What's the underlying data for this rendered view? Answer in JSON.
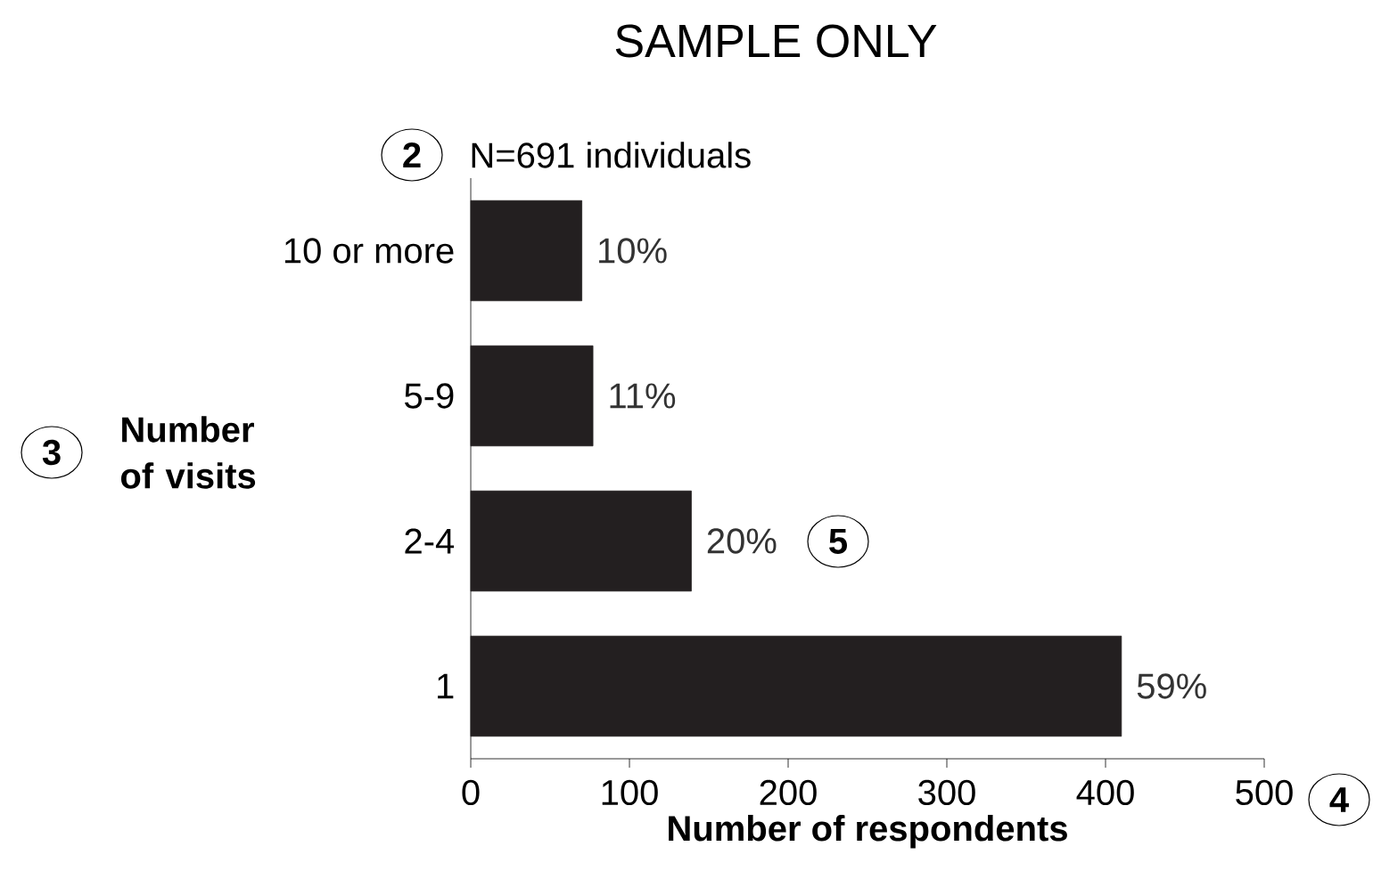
{
  "chart_data": {
    "type": "bar",
    "orientation": "horizontal",
    "title": "SAMPLE ONLY",
    "subtitle": "N=691 individuals",
    "xlabel": "Number of respondents",
    "ylabel": "Number of visits",
    "categories": [
      "10 or more",
      "5-9",
      "2-4",
      "1"
    ],
    "values": [
      70,
      77,
      139,
      410
    ],
    "color": "#231f20",
    "xlim": [
      0,
      500
    ],
    "xticks": [
      0,
      100,
      200,
      300,
      400,
      500
    ],
    "annotations": [
      "2",
      "3",
      "4",
      "5",
      {
        "text": "10%",
        "x": 70,
        "y": "10 or more"
      },
      {
        "text": "11%",
        "x": 77,
        "y": "5-9"
      },
      {
        "text": "20%",
        "x": 139,
        "y": "2-4"
      },
      {
        "text": "59%",
        "x": 410,
        "y": "1"
      }
    ]
  }
}
